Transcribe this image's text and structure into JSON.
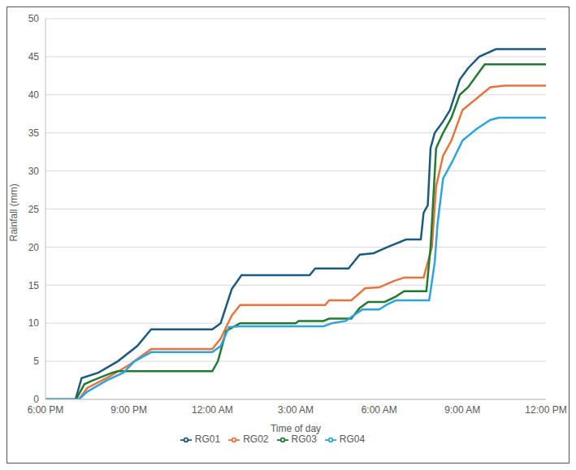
{
  "chart_data": {
    "type": "line",
    "x_label": "Time of day",
    "y_label": "Rainfall (mm)",
    "xlim": [
      18,
      36
    ],
    "xticks": [
      {
        "value": 18,
        "label": "6:00 PM"
      },
      {
        "value": 21,
        "label": "9:00 PM"
      },
      {
        "value": 24,
        "label": "12:00 AM"
      },
      {
        "value": 27,
        "label": "3:00 AM"
      },
      {
        "value": 30,
        "label": "6:00 AM"
      },
      {
        "value": 33,
        "label": "9:00 AM"
      },
      {
        "value": 36,
        "label": "12:00 PM"
      }
    ],
    "ylim": [
      0,
      50
    ],
    "yticks": [
      0,
      5,
      10,
      15,
      20,
      25,
      30,
      35,
      40,
      45,
      50
    ],
    "grid": true,
    "legend": "bottom",
    "series": [
      {
        "name": "RG01",
        "color": "#1d5a80",
        "x": [
          18,
          19.08,
          19.3,
          19.9,
          20.6,
          21.3,
          21.8,
          24.0,
          24.3,
          24.7,
          25.05,
          27.5,
          27.7,
          28.9,
          29.3,
          29.8,
          30.3,
          30.97,
          31.5,
          31.6,
          31.75,
          31.85,
          32.0,
          32.3,
          32.55,
          32.9,
          33.2,
          33.6,
          34.2,
          36
        ],
        "values": [
          0,
          0,
          2.8,
          3.5,
          5,
          7,
          9.2,
          9.2,
          10,
          14.5,
          16.3,
          16.3,
          17.2,
          17.2,
          19,
          19.2,
          20,
          21,
          21,
          24.5,
          25.5,
          33,
          35,
          36.5,
          38,
          42,
          43.5,
          45,
          46,
          46
        ]
      },
      {
        "name": "RG02",
        "color": "#e8743b",
        "x": [
          18,
          19.2,
          19.5,
          20.3,
          21.0,
          21.8,
          24.0,
          24.3,
          24.7,
          25.0,
          28.06,
          28.2,
          29.0,
          29.5,
          30.0,
          30.5,
          30.9,
          31.6,
          31.9,
          32.05,
          32.3,
          32.6,
          33.0,
          33.5,
          34.0,
          34.5,
          36
        ],
        "values": [
          0,
          0,
          1.5,
          3,
          4.5,
          6.6,
          6.6,
          8,
          11,
          12.4,
          12.4,
          13,
          13,
          14.6,
          14.7,
          15.5,
          16,
          16,
          20,
          28,
          32,
          34,
          38,
          39.5,
          41,
          41.2,
          41.2
        ]
      },
      {
        "name": "RG03",
        "color": "#217a2f",
        "x": [
          18,
          19.1,
          19.4,
          19.7,
          20.4,
          20.6,
          24.0,
          24.2,
          24.5,
          25.0,
          27.0,
          27.1,
          28.0,
          28.2,
          29.0,
          29.3,
          29.6,
          30.2,
          30.6,
          30.9,
          31.7,
          31.85,
          32.05,
          32.3,
          32.6,
          32.9,
          33.2,
          33.5,
          33.8,
          36
        ],
        "values": [
          0,
          0,
          2,
          2.5,
          3.5,
          3.7,
          3.7,
          5,
          9,
          10,
          10,
          10.3,
          10.3,
          10.6,
          10.6,
          12,
          12.8,
          12.8,
          13.5,
          14.2,
          14.2,
          20,
          33,
          35,
          37,
          40,
          41,
          42.5,
          44,
          44
        ]
      },
      {
        "name": "RG04",
        "color": "#2ea3dd",
        "x": [
          18,
          19.2,
          19.5,
          20.2,
          20.8,
          21.2,
          21.8,
          24.0,
          24.3,
          24.6,
          25.0,
          28.0,
          28.3,
          28.8,
          29.4,
          30.0,
          30.3,
          30.6,
          31.8,
          32.0,
          32.1,
          32.3,
          32.6,
          33.0,
          33.5,
          34.0,
          34.3,
          36
        ],
        "values": [
          0,
          0,
          1,
          2.5,
          3.5,
          5,
          6.2,
          6.2,
          7,
          9.5,
          9.6,
          9.6,
          10,
          10.3,
          11.8,
          11.8,
          12.5,
          13,
          13,
          18,
          23,
          29,
          31,
          34,
          35.5,
          36.7,
          37,
          37
        ]
      }
    ]
  }
}
